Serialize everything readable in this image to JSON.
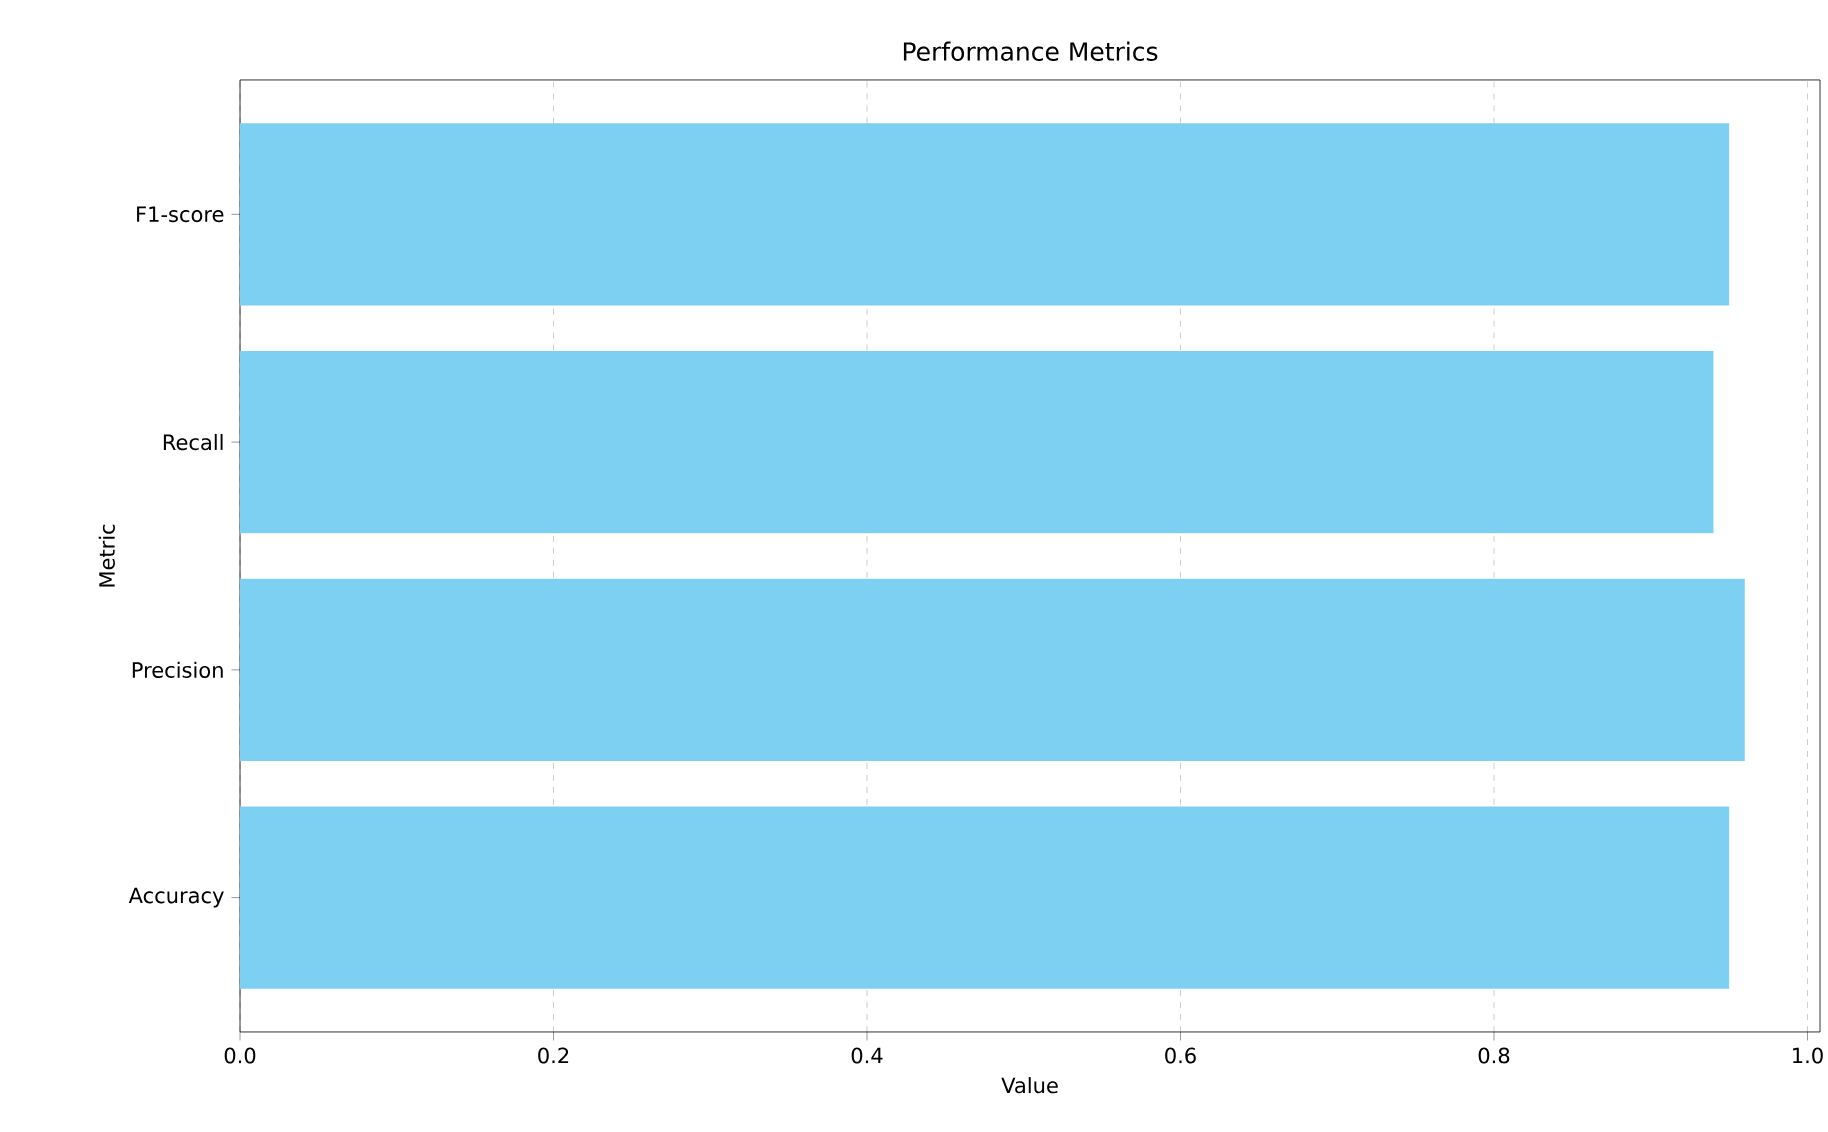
{
  "chart_data": {
    "type": "bar",
    "orientation": "horizontal",
    "title": "Performance Metrics",
    "xlabel": "Value",
    "ylabel": "Metric",
    "categories": [
      "F1-score",
      "Recall",
      "Precision",
      "Accuracy"
    ],
    "values": [
      0.95,
      0.94,
      0.96,
      0.95
    ],
    "color": "#7dd0f2",
    "xlim": [
      0,
      1.008
    ],
    "xticks": [
      {
        "value": 0,
        "label": "0.0"
      },
      {
        "value": 0.2,
        "label": "0.2"
      },
      {
        "value": 0.4,
        "label": "0.4"
      },
      {
        "value": 0.6,
        "label": "0.6"
      },
      {
        "value": 0.8,
        "label": "0.8"
      },
      {
        "value": 1.0,
        "label": "1.0"
      }
    ],
    "grid": "x",
    "line_style": "dashed"
  }
}
